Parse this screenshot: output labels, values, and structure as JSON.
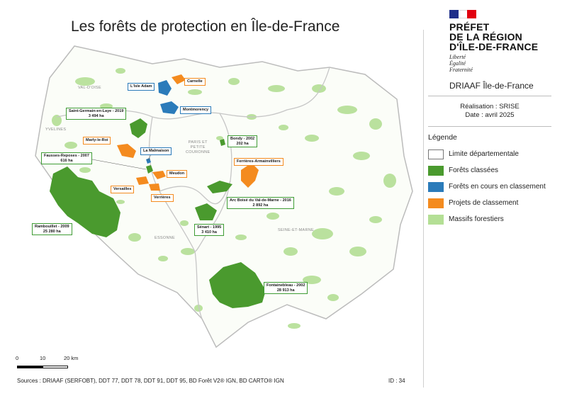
{
  "title": "Les forêts de protection en Île-de-France",
  "header": {
    "prefet_lines": [
      "PRÉFET",
      "DE LA RÉGION",
      "D'ÎLE-DE-FRANCE"
    ],
    "motto_lines": [
      "Liberté",
      "Égalité",
      "Fraternité"
    ],
    "org": "DRIAAF Île-de-France",
    "credit_realisation": "Réalisation : SRISE",
    "credit_date": "Date : avril 2025"
  },
  "legend": {
    "title": "Légende",
    "items": [
      {
        "label": "Limite départementale",
        "color": "#ffffff"
      },
      {
        "label": "Forêts classées",
        "color": "#4a9a2e"
      },
      {
        "label": "Forêts en cours en classement",
        "color": "#2b7bba"
      },
      {
        "label": "Projets de classement",
        "color": "#f48b1f"
      },
      {
        "label": "Massifs forestiers",
        "color": "#b4df95"
      }
    ]
  },
  "scale": {
    "labels": [
      "0",
      "10",
      "20 km"
    ]
  },
  "footer": {
    "sources": "Sources : DRIAAF (SERFOBT), DDT 77, DDT 78, DDT 91, DDT 95, BD Forêt V2® IGN, BD CARTO® IGN",
    "id": "ID : 34"
  },
  "departments": [
    {
      "name": "VAL-D'OISE"
    },
    {
      "name": "YVELINES"
    },
    {
      "name": "PARIS ET PETITE COURONNE",
      "lines": [
        "PARIS ET",
        "PETITE",
        "COURONNE"
      ]
    },
    {
      "name": "ESSONNE"
    },
    {
      "name": "SEINE-ET-MARNE"
    }
  ],
  "forests": [
    {
      "id": "lisle-adam",
      "lines": [
        "L'Isle Adam"
      ],
      "status": "in-progress"
    },
    {
      "id": "carnelle",
      "lines": [
        "Carnelle"
      ],
      "status": "project"
    },
    {
      "id": "montmorency",
      "lines": [
        "Montmorency"
      ],
      "status": "in-progress"
    },
    {
      "id": "saint-germain",
      "lines": [
        "Saint-Germain-en-Laye - 2019",
        "3 494 ha"
      ],
      "status": "classified"
    },
    {
      "id": "marly",
      "lines": [
        "Marly-le-Roi"
      ],
      "status": "project"
    },
    {
      "id": "malmaison",
      "lines": [
        "La Malmaison"
      ],
      "status": "in-progress"
    },
    {
      "id": "fausses-reposes",
      "lines": [
        "Fausses-Reposes - 2007",
        "616 ha"
      ],
      "status": "classified"
    },
    {
      "id": "meudon",
      "lines": [
        "Meudon"
      ],
      "status": "project"
    },
    {
      "id": "versailles",
      "lines": [
        "Versailles"
      ],
      "status": "project"
    },
    {
      "id": "verrieres",
      "lines": [
        "Verrières"
      ],
      "status": "project"
    },
    {
      "id": "bondy",
      "lines": [
        "Bondy - 2002",
        "202 ha"
      ],
      "status": "classified"
    },
    {
      "id": "ferrieres",
      "lines": [
        "Ferrières-Armainvilliers"
      ],
      "status": "project"
    },
    {
      "id": "arc-boise",
      "lines": [
        "Arc Boisé du Val-de-Marne - 2016",
        "2 892 ha"
      ],
      "status": "classified"
    },
    {
      "id": "senart",
      "lines": [
        "Sénart - 1995",
        "3 410 ha"
      ],
      "status": "classified"
    },
    {
      "id": "rambouillet",
      "lines": [
        "Rambouillet - 2009",
        "25 280 ha"
      ],
      "status": "classified"
    },
    {
      "id": "fontainebleau",
      "lines": [
        "Fontainebleau - 2002",
        "28 913 ha"
      ],
      "status": "classified"
    }
  ]
}
